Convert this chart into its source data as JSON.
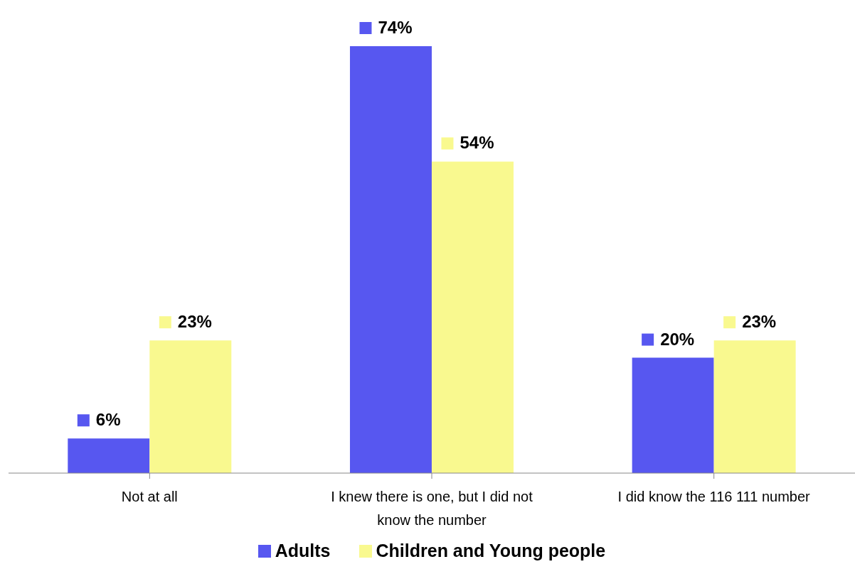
{
  "chart_data": {
    "type": "bar",
    "categories": [
      "Not at all",
      "I knew there is one, but I did not know the number",
      "I did know the 116  111 number"
    ],
    "series": [
      {
        "name": "Adults",
        "color": "#5757f0",
        "values": [
          6,
          74,
          20
        ],
        "value_labels": [
          "6%",
          "74%",
          "20%"
        ]
      },
      {
        "name": "Children and Young people",
        "color": "#f9f98f",
        "values": [
          23,
          54,
          23
        ],
        "value_labels": [
          "23%",
          "54%",
          "23%"
        ]
      }
    ],
    "legend": "bottom",
    "grid": false
  }
}
